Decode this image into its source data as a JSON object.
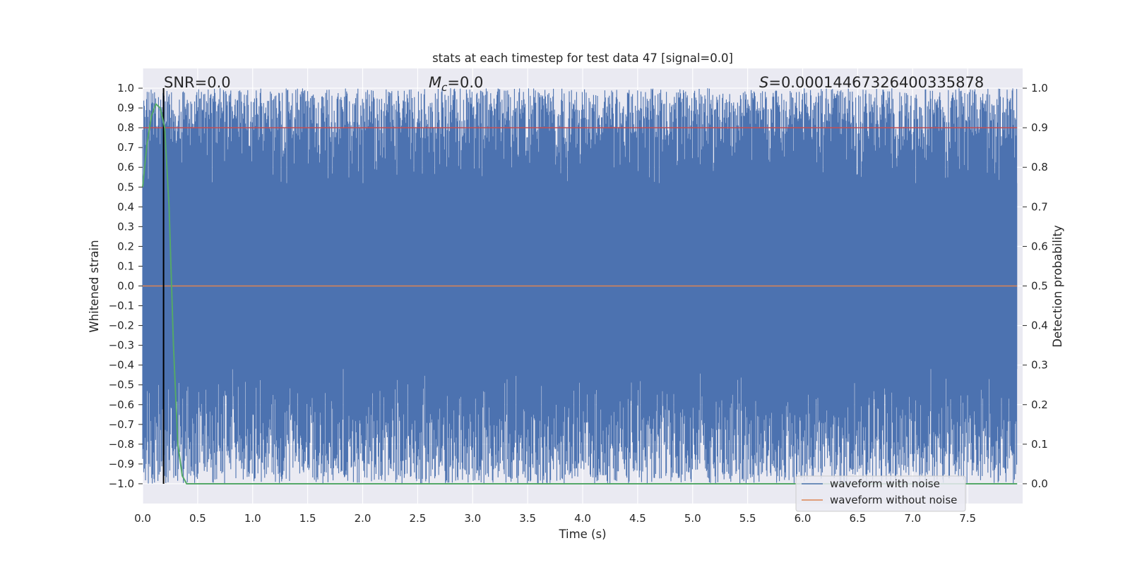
{
  "chart_data": {
    "type": "line",
    "title": "stats at each timestep for test data 47 [signal=0.0]",
    "xlabel": "Time (s)",
    "ylabel_left": "Whitened strain",
    "ylabel_right": "Detection probability",
    "xlim": [
      0.0,
      8.0
    ],
    "ylim_left": [
      -1.1,
      1.1
    ],
    "ylim_right": [
      -0.05,
      1.05
    ],
    "x_ticks": [
      0.0,
      0.5,
      1.0,
      1.5,
      2.0,
      2.5,
      3.0,
      3.5,
      4.0,
      4.5,
      5.0,
      5.5,
      6.0,
      6.5,
      7.0,
      7.5
    ],
    "x_tick_labels": [
      "0.0",
      "0.5",
      "1.0",
      "1.5",
      "2.0",
      "2.5",
      "3.0",
      "3.5",
      "4.0",
      "4.5",
      "5.0",
      "5.5",
      "6.0",
      "6.5",
      "7.0",
      "7.5"
    ],
    "y_left_ticks": [
      1.0,
      0.9,
      0.8,
      0.7,
      0.6,
      0.5,
      0.4,
      0.3,
      0.2,
      0.1,
      0.0,
      -0.1,
      -0.2,
      -0.3,
      -0.4,
      -0.5,
      -0.6,
      -0.7,
      -0.8,
      -0.9,
      -1.0
    ],
    "y_left_tick_labels": [
      "1.0",
      "0.9",
      "0.8",
      "0.7",
      "0.6",
      "0.5",
      "0.4",
      "0.3",
      "0.2",
      "0.1",
      "0.0",
      "−0.1",
      "−0.2",
      "−0.3",
      "−0.4",
      "−0.5",
      "−0.6",
      "−0.7",
      "−0.8",
      "−0.9",
      "−1.0"
    ],
    "y_right_ticks": [
      1.0,
      0.9,
      0.8,
      0.7,
      0.6,
      0.5,
      0.4,
      0.3,
      0.2,
      0.1,
      0.0
    ],
    "y_right_tick_labels": [
      "1.0",
      "0.9",
      "0.8",
      "0.7",
      "0.6",
      "0.5",
      "0.4",
      "0.3",
      "0.2",
      "0.1",
      "0.0"
    ],
    "annotations": {
      "snr": "SNR=0.0",
      "mc_symbol": "M",
      "mc_sub": "c",
      "mc_value": "=0.0",
      "s_symbol": "S",
      "s_value": "=0.00014467326400335878"
    },
    "series": [
      {
        "name": "waveform with noise",
        "color": "#4c72b0",
        "description": "noise filling approx. -1.0 to 1.0 over the full 0-8 s range"
      },
      {
        "name": "waveform without noise",
        "color": "#dd8452",
        "value": 0.0
      },
      {
        "name": "detection probability",
        "color": "#55a868",
        "axis": "right",
        "x": [
          0.0,
          0.04,
          0.08,
          0.12,
          0.16,
          0.2,
          0.24,
          0.28,
          0.32,
          0.36,
          0.4,
          0.5,
          1.0,
          2.0,
          4.0,
          6.0,
          7.95
        ],
        "y": [
          0.75,
          0.86,
          0.93,
          0.96,
          0.95,
          0.9,
          0.7,
          0.35,
          0.1,
          0.02,
          0.0,
          0.0,
          0.0,
          0.0,
          0.0,
          0.0,
          0.0
        ]
      },
      {
        "name": "threshold",
        "color": "#c44e52",
        "axis": "right",
        "value": 0.9
      },
      {
        "name": "event marker",
        "color": "#000000",
        "x": 0.19
      }
    ],
    "legend_placement": "lower-right",
    "grid": true
  }
}
